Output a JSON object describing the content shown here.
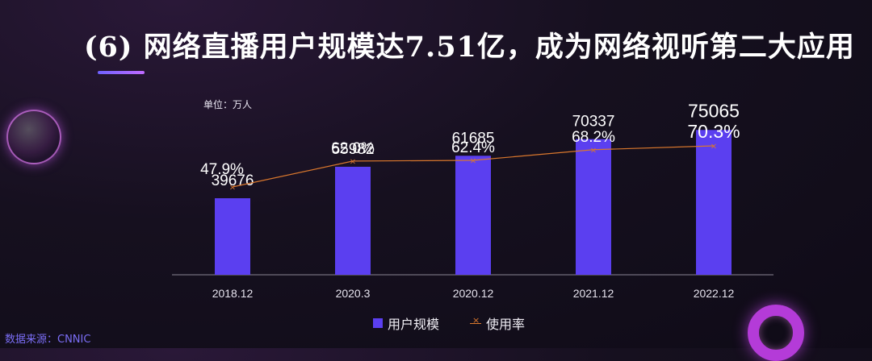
{
  "title": "(6) 网络直播用户规模达7.51亿，成为网络视听第二大应用",
  "unit_label": "单位：万人",
  "source": "数据来源：CNNIC",
  "colors": {
    "bar": "#5b3ff0",
    "line": "#d9772d",
    "accent": "#7b6ef6"
  },
  "legend": {
    "bar_label": "用户规模",
    "line_label": "使用率"
  },
  "chart_data": {
    "type": "bar",
    "categories": [
      "2018.12",
      "2020.3",
      "2020.12",
      "2021.12",
      "2022.12"
    ],
    "series": [
      {
        "name": "用户规模",
        "type": "bar",
        "values": [
          39676,
          55982,
          61685,
          70337,
          75065
        ]
      },
      {
        "name": "使用率",
        "type": "line",
        "values": [
          47.9,
          62.0,
          62.4,
          68.2,
          70.3
        ],
        "labels": [
          "47.9%",
          "62.0%",
          "62.4%",
          "68.2%",
          "70.3%"
        ]
      }
    ],
    "ylabel": "单位：万人",
    "grid": false,
    "legend_position": "bottom"
  }
}
